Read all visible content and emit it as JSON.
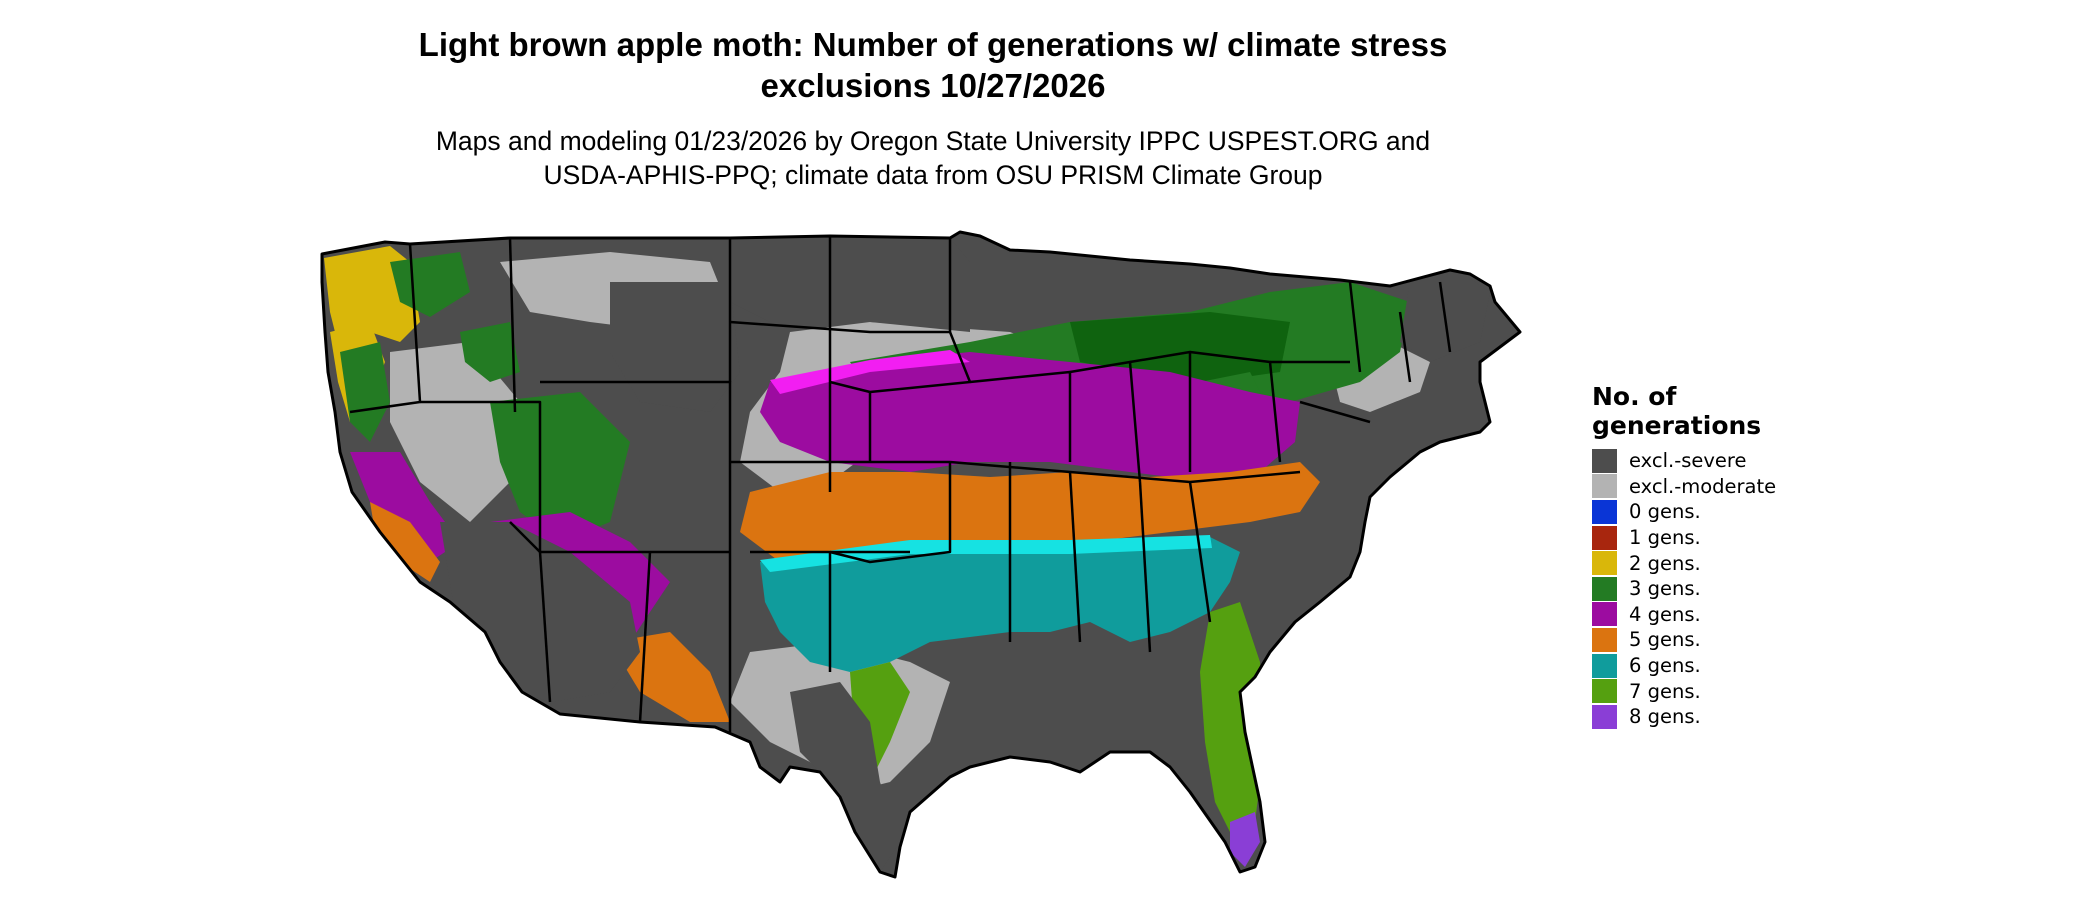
{
  "header": {
    "title_line1": "Light brown apple moth: Number of generations w/ climate stress",
    "title_line2": "exclusions 10/27/2026",
    "subtitle_line1": "Maps and modeling 01/23/2026 by Oregon State University IPPC USPEST.ORG and",
    "subtitle_line2": "USDA-APHIS-PPQ; climate data from OSU PRISM Climate Group"
  },
  "legend": {
    "title_line1": "No. of",
    "title_line2": "generations",
    "items": [
      {
        "label": "excl.-severe",
        "color": "#4d4d4d"
      },
      {
        "label": "excl.-moderate",
        "color": "#b3b3b3"
      },
      {
        "label": "0 gens.",
        "color": "#0a35d6"
      },
      {
        "label": "1 gens.",
        "color": "#a8260e"
      },
      {
        "label": "2 gens.",
        "color": "#d9b70a"
      },
      {
        "label": "3 gens.",
        "color": "#237b23"
      },
      {
        "label": "4 gens.",
        "color": "#9c0ca0"
      },
      {
        "label": "5 gens.",
        "color": "#db7410"
      },
      {
        "label": "6 gens.",
        "color": "#109c9c"
      },
      {
        "label": "7 gens.",
        "color": "#55a010"
      },
      {
        "label": "8 gens.",
        "color": "#8a3ed6"
      }
    ]
  },
  "map": {
    "colors": {
      "severe": "#4d4d4d",
      "moderate": "#b3b3b3",
      "gen2": "#d9b70a",
      "gen3": "#237b23",
      "gen3dark": "#0f630f",
      "gen4": "#9c0ca0",
      "gen4bright": "#f21ef2",
      "gen5": "#db7410",
      "gen6": "#109c9c",
      "gen6bright": "#16e2e2",
      "gen7": "#55a010",
      "gen8": "#8a3ed6",
      "border": "#000000"
    }
  }
}
